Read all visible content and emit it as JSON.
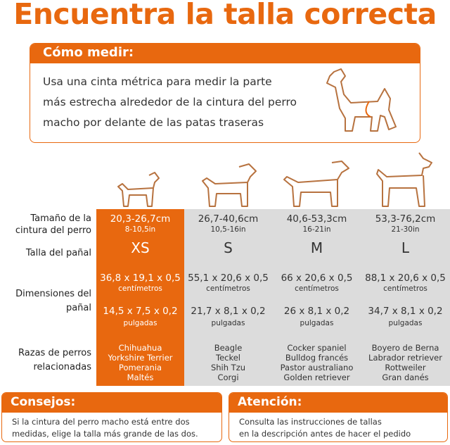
{
  "title": "Encuentra la talla correcta",
  "how_to": {
    "heading": "Cómo medir:",
    "lines": [
      "Usa una cinta métrica para medir la parte",
      "más estrecha alrededor de la cintura del perro",
      "macho por delante de las patas traseras"
    ]
  },
  "row_labels": {
    "waist": [
      "Tamaño de la",
      "cintura del perro"
    ],
    "size": "Talla del pañal",
    "dims": [
      "Dimensiones del",
      "pañal"
    ],
    "breeds": [
      "Razas de perros",
      "relacionadas"
    ]
  },
  "sizes": [
    {
      "waist_cm": "20,3-26,7cm",
      "waist_in": "8-10,5in",
      "size": "XS",
      "dim_cm": "36,8 x 19,1 x 0,5",
      "cm_unit": "centímetros",
      "dim_in": "14,5 x 7,5 x 0,2",
      "in_unit": "pulgadas",
      "breeds": [
        "Chihuahua",
        "Yorkshire Terrier",
        "Pomerania",
        "Maltés"
      ]
    },
    {
      "waist_cm": "26,7-40,6cm",
      "waist_in": "10,5-16in",
      "size": "S",
      "dim_cm": "55,1 x 20,6 x 0,5",
      "cm_unit": "centímetros",
      "dim_in": "21,7 x 8,1 x 0,2",
      "in_unit": "pulgadas",
      "breeds": [
        "Beagle",
        "Teckel",
        "Shih Tzu",
        "Corgi"
      ]
    },
    {
      "waist_cm": "40,6-53,3cm",
      "waist_in": "16-21in",
      "size": "M",
      "dim_cm": "66 x 20,6 x 0,5",
      "cm_unit": "centímetros",
      "dim_in": "26 x 8,1 x 0,2",
      "in_unit": "pulgadas",
      "breeds": [
        "Cocker spaniel",
        "Bulldog francés",
        "Pastor australiano",
        "Golden retriever"
      ]
    },
    {
      "waist_cm": "53,3-76,2cm",
      "waist_in": "21-30in",
      "size": "L",
      "dim_cm": "88,1 x 20,6 x 0,5",
      "cm_unit": "centímetros",
      "dim_in": "34,7 x 8,1 x 0,2",
      "in_unit": "pulgadas",
      "breeds": [
        "Boyero de Berna",
        "Labrador retriever",
        "Rottweiler",
        "Gran danés"
      ]
    }
  ],
  "tips": {
    "heading": "Consejos:",
    "lines": [
      "Si la cintura del perro macho está entre dos",
      "medidas, elige la talla más grande de las dos."
    ]
  },
  "attention": {
    "heading": "Atención:",
    "lines": [
      "Consulta las instrucciones de tallas",
      "en la descripción antes de hacer el pedido"
    ]
  },
  "colors": {
    "accent": "#e8680f",
    "gray": "#dcdcdc",
    "outline": "#b7723f"
  }
}
